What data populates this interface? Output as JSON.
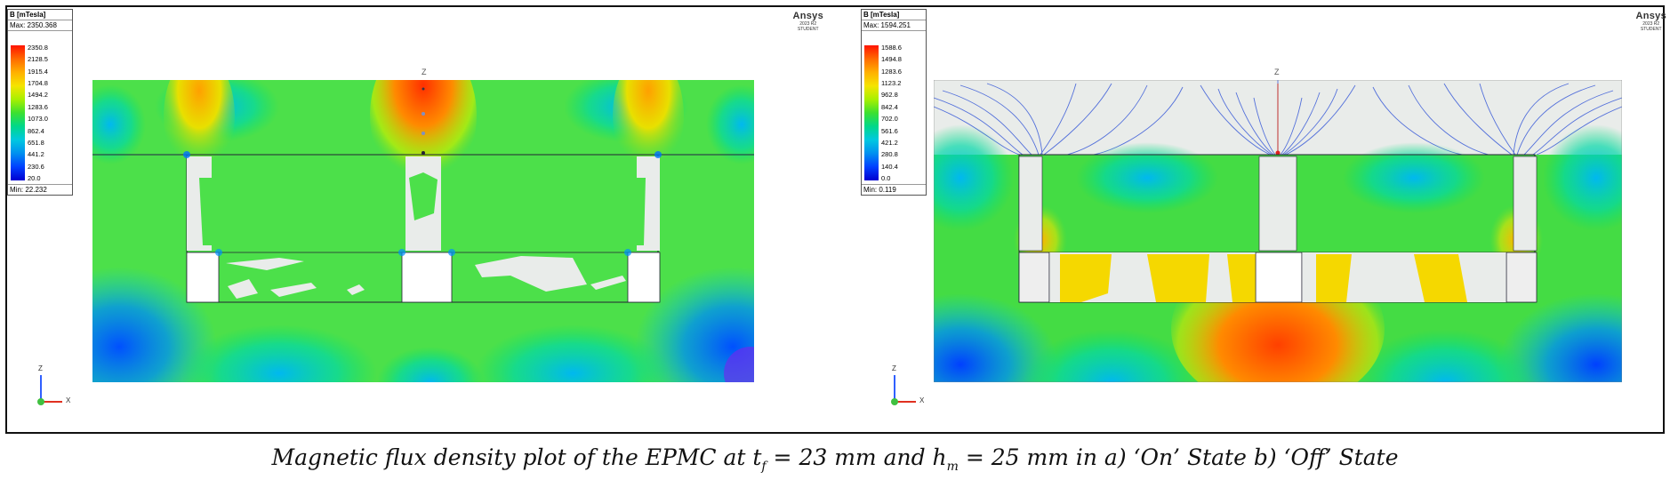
{
  "panels": [
    {
      "legend": {
        "title": "B [mTesla]",
        "max": "Max: 2350.368",
        "ticks": [
          "2350.8",
          "2128.5",
          "1915.4",
          "1704.8",
          "1494.2",
          "1283.6",
          "1073.0",
          "862.4",
          "651.8",
          "441.2",
          "230.6",
          "20.0"
        ],
        "min": "Min: 22.232"
      },
      "brand": {
        "name": "Ansys",
        "edition": "2023 R2",
        "tier": "STUDENT"
      },
      "axis_label": "Z",
      "triad": {
        "z": "Z",
        "x": "X"
      }
    },
    {
      "legend": {
        "title": "B [mTesla]",
        "max": "Max: 1594.251",
        "ticks": [
          "1588.6",
          "1494.8",
          "1283.6",
          "1123.2",
          "962.8",
          "842.4",
          "702.0",
          "561.6",
          "421.2",
          "280.8",
          "140.4",
          "0.0"
        ],
        "min": "Min: 0.119"
      },
      "brand": {
        "name": "Ansys",
        "edition": "2023 R2",
        "tier": "STUDENT"
      },
      "axis_label": "Z",
      "triad": {
        "z": "Z",
        "x": "X"
      }
    }
  ],
  "caption": {
    "prefix": "Magnetic flux density plot of the EPMC at t",
    "sub1": "f",
    "mid": " = 23 mm and h",
    "sub2": "m",
    "suffix": " = 25 mm in a) ‘On’ State b)  ‘Off’ State"
  },
  "colors": {
    "high": "#ff3c00",
    "mid": "#2ee030",
    "low": "#0060ff",
    "flux_lines": "#3a5bd8",
    "air": "#e9ecea"
  }
}
